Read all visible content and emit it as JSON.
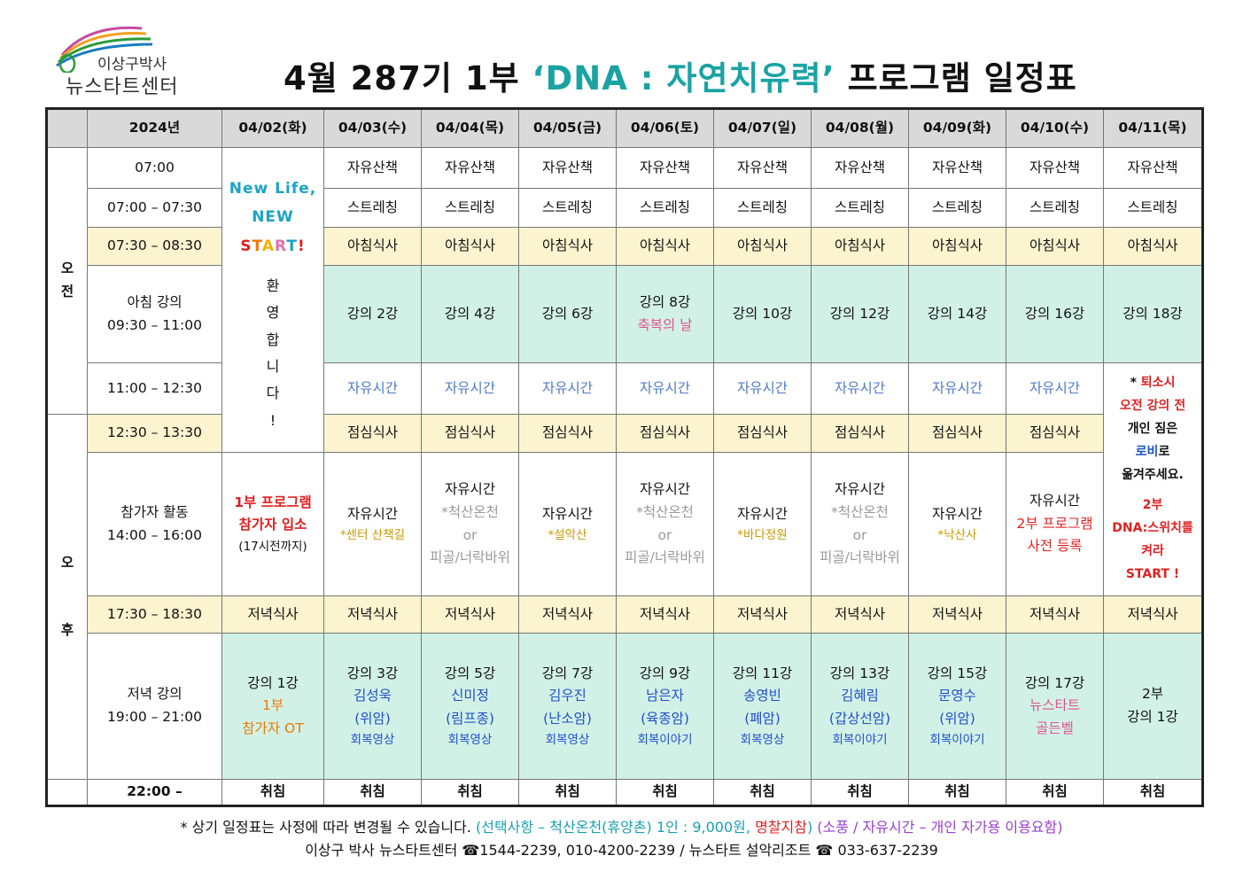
{
  "logo": {
    "line1": "이상구박사",
    "line2": "뉴스타트센터"
  },
  "title": {
    "part1": "4월 287기 1부 ",
    "part2": "‘DNA : 자연치유력’",
    "part3": " 프로그램 일정표"
  },
  "header": {
    "year": "2024년",
    "dates": [
      "04/02(화)",
      "04/03(수)",
      "04/04(목)",
      "04/05(금)",
      "04/06(토)",
      "04/07(일)",
      "04/08(월)",
      "04/09(화)",
      "04/10(수)",
      "04/11(목)"
    ]
  },
  "ampm": {
    "am1": "오",
    "am2": "전",
    "pm1": "오",
    "pm2": "후"
  },
  "times": {
    "t0700": "07:00",
    "t0700_0730": "07:00 – 07:30",
    "t0730_0830": "07:30 – 08:30",
    "morning_lecture_label": "아침 강의",
    "morning_lecture_time": "09:30 – 11:00",
    "t1100_1230": "11:00 – 12:30",
    "t1230_1330": "12:30 – 13:30",
    "activity_label": "참가자 활동",
    "activity_time": "14:00 – 16:00",
    "t1730_1830": "17:30 – 18:30",
    "evening_lecture_label": "저녁 강의",
    "evening_lecture_time": "19:00 – 21:00",
    "t2200": "22:00 –"
  },
  "day1": {
    "new_life": "New Life,",
    "new": "NEW",
    "start": [
      "S",
      "T",
      "A",
      "R",
      "T",
      "!"
    ],
    "welcome": [
      "환",
      "영",
      "합",
      "니",
      "다",
      "!"
    ],
    "entry_line1": "1부 프로그램",
    "entry_line2": "참가자 입소",
    "entry_note": "(17시전까지)",
    "dinner": "저녁식사",
    "lec_title": "강의 1강",
    "lec_line2": "1부",
    "lec_line3": "참가자 OT",
    "sleep": "취침"
  },
  "common": {
    "walk": "자유산책",
    "stretch": "스트레칭",
    "breakfast": "아침식사",
    "free": "자유시간",
    "lunch": "점심식사",
    "dinner": "저녁식사",
    "sleep": "취침"
  },
  "morning_lectures": [
    "강의 2강",
    "강의 4강",
    "강의 6강",
    "강의 8강",
    "강의 10강",
    "강의 12강",
    "강의 14강",
    "강의 16강",
    "강의 18강"
  ],
  "blessing_day": "축복의 날",
  "activities": {
    "d3_note": "*센터 산책길",
    "d4_line2": "*척산온천",
    "d4_line3": "or",
    "d4_line4": "피골/너락바위",
    "d5_note": "*설악산",
    "d7_note": "*바다정원",
    "d9_note": "*낙산사",
    "d10_line2": "2부 프로그램",
    "d10_line3": "사전 등록"
  },
  "day11_notice": {
    "l1a": "* ",
    "l1b": "퇴소시",
    "l2": "오전 강의 전",
    "l3": "개인 짐은",
    "l4a": "로비",
    "l4b": "로",
    "l5": "옮겨주세요.",
    "l6": "2부",
    "l7": "DNA:스위치를",
    "l8": "켜라",
    "l9": "START !"
  },
  "evening_lectures": [
    {
      "title": "강의 3강",
      "name": "김성욱",
      "disease": "(위암)",
      "tag": "회복영상"
    },
    {
      "title": "강의 5강",
      "name": "신미정",
      "disease": "(림프종)",
      "tag": "회복영상"
    },
    {
      "title": "강의 7강",
      "name": "김우진",
      "disease": "(난소암)",
      "tag": "회복영상"
    },
    {
      "title": "강의 9강",
      "name": "남은자",
      "disease": "(육종암)",
      "tag": "회복이야기"
    },
    {
      "title": "강의 11강",
      "name": "송영빈",
      "disease": "(폐암)",
      "tag": "회복영상"
    },
    {
      "title": "강의 13강",
      "name": "김혜림",
      "disease": "(갑상선암)",
      "tag": "회복이야기"
    },
    {
      "title": "강의 15강",
      "name": "문영수",
      "disease": "(위암)",
      "tag": "회복이야기"
    }
  ],
  "d10_evening": {
    "title": "강의 17강",
    "line2": "뉴스타트",
    "line3": "골든벨"
  },
  "d11_evening": {
    "line1": "2부",
    "line2": "강의 1강"
  },
  "footer": {
    "f1a": "* 상기 일정표는 사정에 따라 변경될 수 있습니다. ",
    "f1b": "(선택사항 – 척산온천(휴양촌) 1인 : 9,000원, ",
    "f1c": "명찰지참",
    "f1d": ")",
    "f1e": " (소풍 / 자유시간 – 개인 자가용 이용요함)",
    "f2": "이상구 박사 뉴스타트센터 ☎1544-2239, 010-4200-2239 /  뉴스타트 설악리조트 ☎ 033-637-2239"
  },
  "colors": {
    "title_accent": "#1aa3a3",
    "header_bg": "#d9d9d9",
    "meal_bg": "#fcf3cf",
    "lecture_bg": "#d2f1e6"
  }
}
